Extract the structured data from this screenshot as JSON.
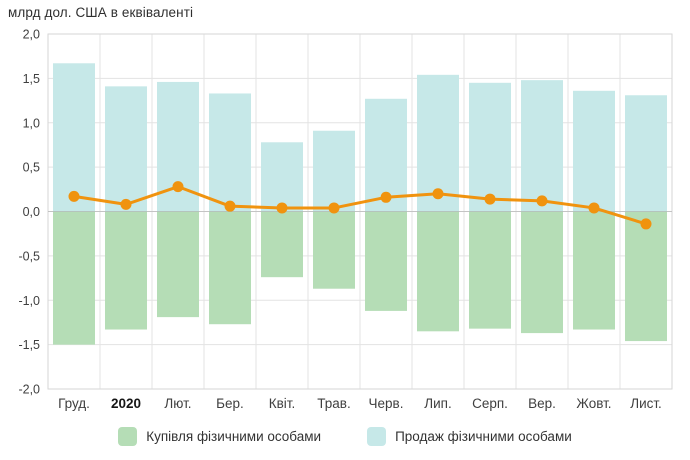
{
  "title": "млрд дол. США в еквіваленті",
  "colors": {
    "purchase_bar": "#b5ddb6",
    "sale_bar": "#c6e8e8",
    "net_line": "#f0930f",
    "grid": "#e3e3e3",
    "plot_border": "#d6d6d6",
    "zero_line": "#b0b0b0",
    "title_text": "#2f2f2f",
    "axis_text": "#3f3f3f"
  },
  "legend": {
    "items": [
      {
        "id": "purchase",
        "label": "Купівля фізичними особами",
        "color": "#b5ddb6"
      },
      {
        "id": "sale",
        "label": "Продаж фізичними особами",
        "color": "#c6e8e8"
      }
    ]
  },
  "chart_data": {
    "type": "bar",
    "subtype": "diverging-bars-with-net-line",
    "title": "млрд дол. США в еквіваленті",
    "categories": [
      "Груд.",
      "2020",
      "Лют.",
      "Бер.",
      "Квіт.",
      "Трав.",
      "Черв.",
      "Лип.",
      "Серп.",
      "Вер.",
      "Жовт.",
      "Лист."
    ],
    "emphasized_category": "2020",
    "series": [
      {
        "name": "Купівля фізичними особами",
        "type": "bar",
        "color": "#b5ddb6",
        "values": [
          -1.5,
          -1.33,
          -1.19,
          -1.27,
          -0.74,
          -0.87,
          -1.12,
          -1.35,
          -1.32,
          -1.37,
          -1.33,
          -1.46
        ]
      },
      {
        "name": "Продаж фізичними особами",
        "type": "bar",
        "color": "#c6e8e8",
        "values": [
          1.67,
          1.41,
          1.46,
          1.33,
          0.78,
          0.91,
          1.27,
          1.54,
          1.45,
          1.48,
          1.36,
          1.31
        ]
      },
      {
        "name": "",
        "type": "line",
        "color": "#f0930f",
        "values": [
          0.17,
          0.08,
          0.28,
          0.06,
          0.04,
          0.04,
          0.16,
          0.2,
          0.14,
          0.12,
          0.04,
          -0.14
        ]
      }
    ],
    "ylim": [
      -2.0,
      2.0
    ],
    "ytick_step": 0.5,
    "ytick_labels": [
      "2,0",
      "1,5",
      "1,0",
      "0,5",
      "0,0",
      "-0,5",
      "-1,0",
      "-1,5",
      "-2,0"
    ],
    "xlabel": "",
    "ylabel": "",
    "grid": true,
    "legend_position": "bottom"
  }
}
